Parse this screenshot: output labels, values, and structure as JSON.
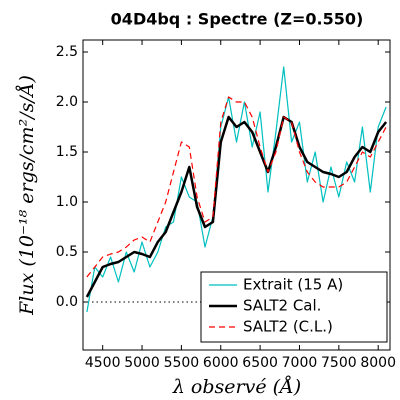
{
  "chart_data": {
    "type": "line",
    "title": "04D4bq : Spectre (Z=0.550)",
    "xlabel": "λ observé (Å)",
    "ylabel": "Flux (10⁻¹⁸ ergs/cm²/s/Å)",
    "x": [
      4300,
      4400,
      4500,
      4600,
      4700,
      4800,
      4900,
      5000,
      5100,
      5200,
      5300,
      5400,
      5500,
      5600,
      5700,
      5800,
      5900,
      6000,
      6100,
      6200,
      6300,
      6400,
      6500,
      6600,
      6700,
      6800,
      6900,
      7000,
      7100,
      7200,
      7300,
      7400,
      7500,
      7600,
      7700,
      7800,
      7900,
      8000,
      8100
    ],
    "series": [
      {
        "name": "Extrait (15 A)",
        "color": "#00bfbf",
        "width": 1.2,
        "dash": false,
        "values": [
          -0.1,
          0.35,
          0.25,
          0.45,
          0.2,
          0.5,
          0.3,
          0.6,
          0.35,
          0.5,
          0.75,
          0.8,
          1.25,
          1.05,
          1.0,
          0.55,
          0.85,
          1.75,
          2.05,
          1.6,
          2.0,
          1.55,
          1.9,
          1.1,
          1.7,
          2.35,
          1.6,
          1.8,
          1.2,
          1.5,
          1.0,
          1.35,
          1.05,
          1.4,
          1.2,
          1.75,
          1.1,
          1.75,
          1.95
        ]
      },
      {
        "name": "SALT2 Cal.",
        "color": "#000000",
        "width": 2.5,
        "dash": false,
        "values": [
          0.05,
          0.2,
          0.35,
          0.38,
          0.4,
          0.45,
          0.5,
          0.48,
          0.45,
          0.6,
          0.7,
          0.9,
          1.1,
          1.35,
          0.95,
          0.75,
          0.8,
          1.6,
          1.85,
          1.75,
          1.8,
          1.7,
          1.5,
          1.3,
          1.55,
          1.85,
          1.8,
          1.55,
          1.4,
          1.35,
          1.3,
          1.28,
          1.25,
          1.3,
          1.45,
          1.55,
          1.5,
          1.7,
          1.8
        ]
      },
      {
        "name": "SALT2 (C.L.)",
        "color": "#ff0000",
        "width": 1.2,
        "dash": true,
        "values": [
          0.25,
          0.35,
          0.45,
          0.48,
          0.5,
          0.55,
          0.62,
          0.65,
          0.6,
          0.8,
          1.0,
          1.3,
          1.6,
          1.55,
          1.05,
          0.8,
          0.85,
          1.8,
          2.05,
          2.0,
          2.0,
          1.85,
          1.55,
          1.3,
          1.5,
          1.85,
          1.8,
          1.5,
          1.3,
          1.2,
          1.15,
          1.15,
          1.15,
          1.2,
          1.35,
          1.5,
          1.45,
          1.6,
          1.75
        ]
      }
    ],
    "xlim": [
      4250,
      8150
    ],
    "ylim": [
      -0.48,
      2.62
    ],
    "xticks": [
      4500,
      5000,
      5500,
      6000,
      6500,
      7000,
      7500,
      8000
    ],
    "yticks": [
      {
        "value": 0,
        "label": "0.0"
      },
      0.5,
      {
        "value": 1,
        "label": "1.0"
      },
      1.5,
      {
        "value": 2,
        "label": "2.0"
      },
      2.5
    ],
    "hline": 0,
    "legend": "lower right"
  }
}
